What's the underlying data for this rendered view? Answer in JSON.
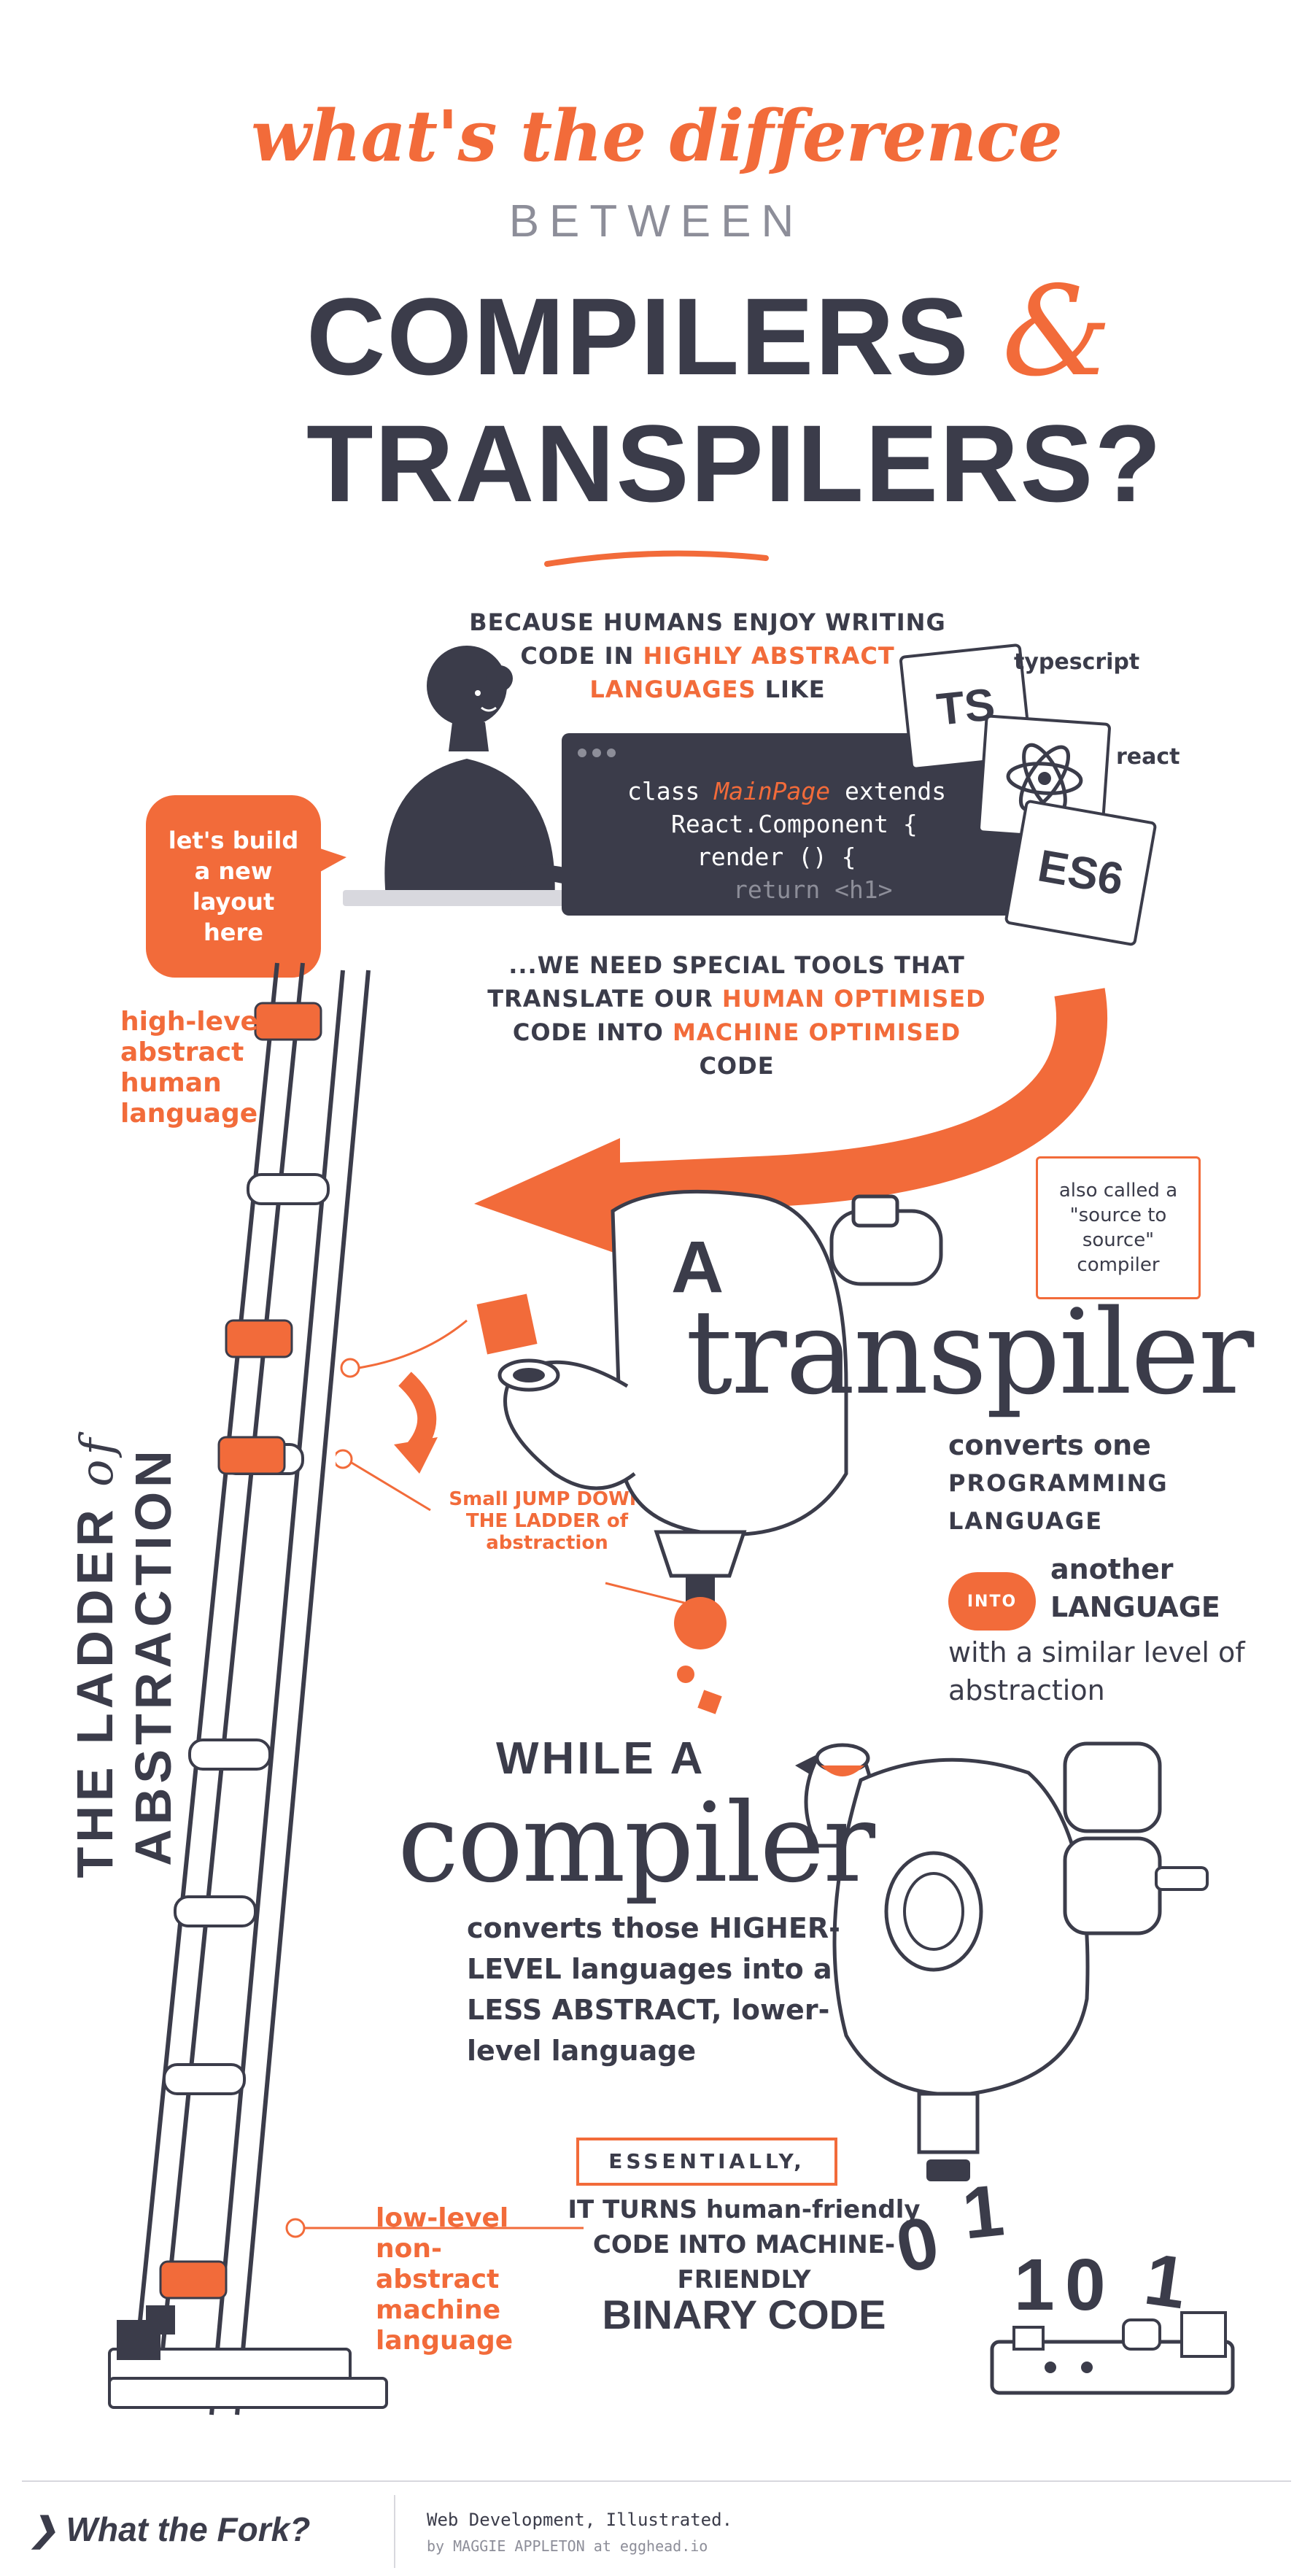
{
  "header": {
    "line1": "what's the difference",
    "line2": "BETWEEN",
    "line3": "COMPILERS",
    "amp": "&",
    "line4": "TRANSPILERS?"
  },
  "intro": {
    "part1": "BECAUSE HUMANS ENJOY WRITING CODE IN ",
    "highlight": "HIGHLY ABSTRACT LANGUAGES",
    "part2": " LIKE"
  },
  "code": {
    "line1_a": "class ",
    "line1_b": "MainPage",
    "line1_c": " extends",
    "line2": "React.Component {",
    "line3": "render () {",
    "line4": "return <h1>"
  },
  "cards": {
    "ts": "TS",
    "ts_label": "typescript",
    "react_label": "react",
    "es6": "ES6"
  },
  "bubble": "let's build a new layout here",
  "need": {
    "p1": "...WE NEED SPECIAL TOOLS THAT TRANSLATE OUR ",
    "h1": "HUMAN OPTIMISED",
    "p2": " CODE INTO ",
    "h2": "MACHINE OPTIMISED",
    "p3": " CODE"
  },
  "ladder": {
    "high": "high-level abstract human language",
    "low": "low-level non-abstract machine language",
    "title_a": "THE LADDER ",
    "title_of": "of",
    "title_b": " ABSTRACTION",
    "small_jump": "Small JUMP DOWN THE LADDER of abstraction"
  },
  "transpiler": {
    "a": "A",
    "word": "transpiler",
    "note": "also called a \"source to source\" compiler",
    "desc1": "converts one",
    "desc2": "PROGRAMMING LANGUAGE",
    "into": "INTO",
    "desc3": "another LANGUAGE",
    "desc4": "with a similar level of abstraction"
  },
  "compiler": {
    "while": "WHILE A",
    "word": "compiler",
    "desc": "converts those HIGHER-LEVEL languages into a LESS ABSTRACT, lower-level language"
  },
  "essentially": {
    "label": "ESSENTIALLY,",
    "text": "IT TURNS human-friendly CODE INTO MACHINE-FRIENDLY",
    "binary": "BINARY CODE"
  },
  "digits": [
    "0",
    "1",
    "1",
    "0",
    "1"
  ],
  "footer": {
    "brand": "What the Fork?",
    "tagline": "Web Development, Illustrated.",
    "byline": "by MAGGIE APPLETON at egghead.io"
  },
  "colors": {
    "accent": "#f26b3a",
    "ink": "#3b3c4a",
    "muted": "#8d8e99"
  }
}
